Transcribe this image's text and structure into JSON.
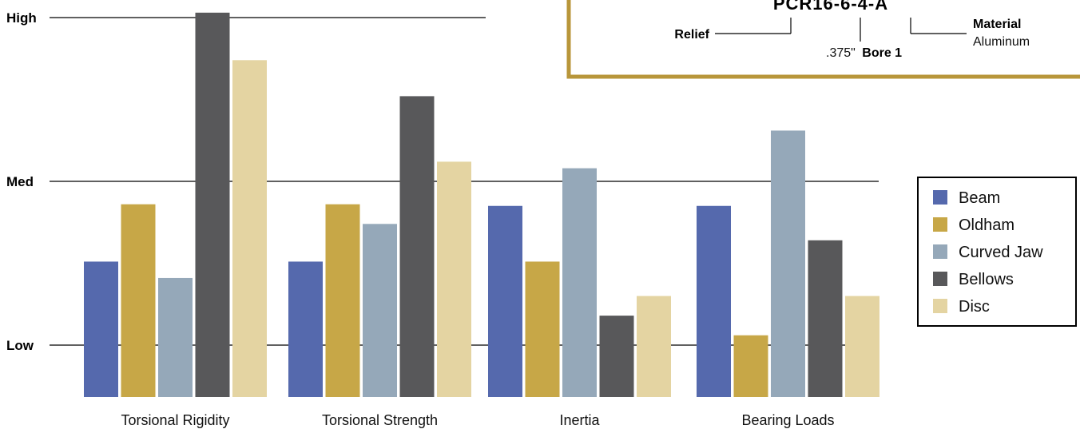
{
  "chart_data": {
    "type": "bar",
    "categories": [
      "Torsional Rigidity",
      "Torsional Strength",
      "Inertia",
      "Bearing Loads"
    ],
    "ylim": [
      0,
      2
    ],
    "y_ticks": [
      {
        "value": 0,
        "label": "Low"
      },
      {
        "value": 1,
        "label": "Med"
      },
      {
        "value": 2,
        "label": "High"
      }
    ],
    "grid": true,
    "legend_position": "right",
    "series": [
      {
        "name": "Beam",
        "color": "#5569ad",
        "values": [
          0.51,
          0.51,
          0.85,
          0.85
        ]
      },
      {
        "name": "Oldham",
        "color": "#c7a747",
        "values": [
          0.86,
          0.86,
          0.51,
          0.06
        ]
      },
      {
        "name": "Curved Jaw",
        "color": "#95a8b9",
        "values": [
          0.41,
          0.74,
          1.08,
          1.31
        ]
      },
      {
        "name": "Bellows",
        "color": "#58585a",
        "values": [
          2.03,
          1.52,
          0.18,
          0.64
        ]
      },
      {
        "name": "Disc",
        "color": "#e4d4a2",
        "values": [
          1.74,
          1.12,
          0.3,
          0.3
        ]
      }
    ]
  },
  "part_callout": {
    "code": "PCR16-6-4-A",
    "relief": "Relief",
    "bore_value": ".375\"",
    "bore_label": "Bore 1",
    "material_label": "Material",
    "material_value": "Aluminum",
    "border_color": "#b8963a"
  }
}
